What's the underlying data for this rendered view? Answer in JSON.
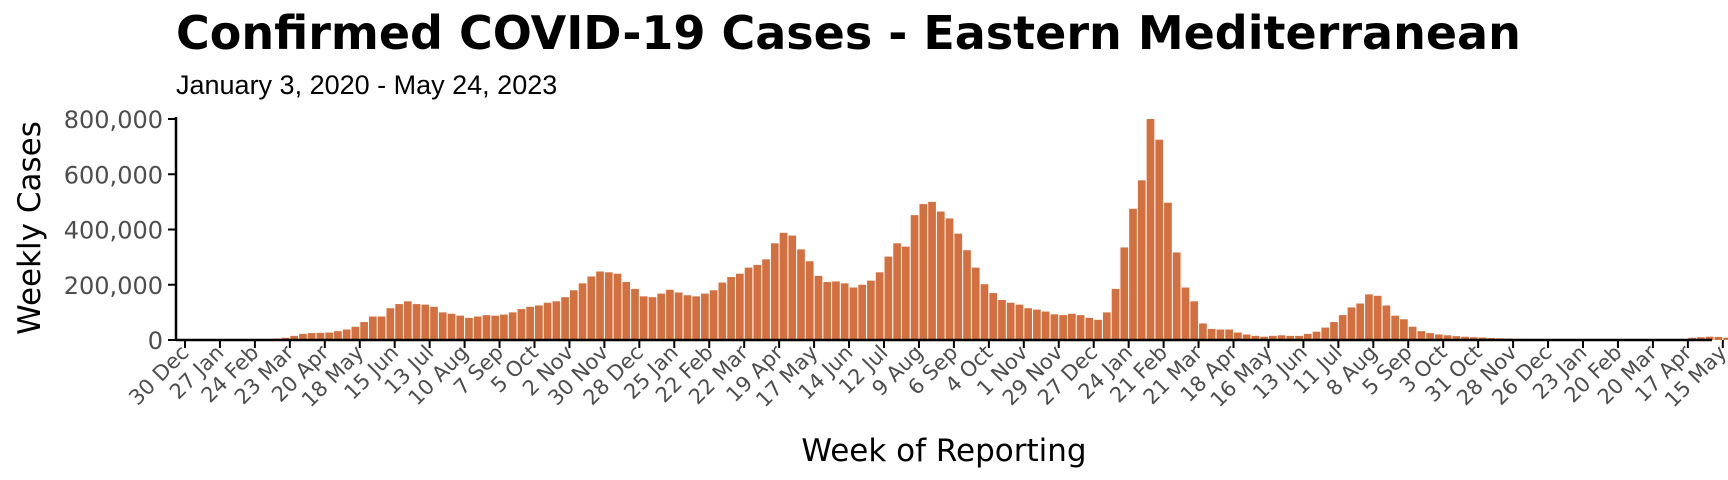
{
  "chart_data": {
    "type": "bar",
    "title": "Confirmed COVID-19 Cases - Eastern Mediterranean",
    "subtitle": "January 3, 2020 - May 24, 2023",
    "xlabel": "Week of Reporting",
    "ylabel": "Weekly Cases",
    "ylim": [
      0,
      800000
    ],
    "yticks": [
      0,
      200000,
      400000,
      600000,
      800000
    ],
    "ytick_labels": [
      "0",
      "200,000",
      "400,000",
      "600,000",
      "800,000"
    ],
    "xtick_labels": [
      "30 Dec",
      "27 Jan",
      "24 Feb",
      "23 Mar",
      "20 Apr",
      "18 May",
      "15 Jun",
      "13 Jul",
      "10 Aug",
      "7 Sep",
      "5 Oct",
      "2 Nov",
      "30 Nov",
      "28 Dec",
      "25 Jan",
      "22 Feb",
      "22 Mar",
      "19 Apr",
      "17 May",
      "14 Jun",
      "12 Jul",
      "9 Aug",
      "6 Sep",
      "4 Oct",
      "1 Nov",
      "29 Nov",
      "27 Dec",
      "24 Jan",
      "21 Feb",
      "21 Mar",
      "18 Apr",
      "16 May",
      "13 Jun",
      "11 Jul",
      "8 Aug",
      "5 Sep",
      "3 Oct",
      "31 Oct",
      "28 Nov",
      "26 Dec",
      "23 Jan",
      "20 Feb",
      "20 Mar",
      "17 Apr",
      "15 May"
    ],
    "grid": false,
    "legend": "none",
    "bar_color": "#d4703f",
    "values": [
      0,
      0,
      0,
      0,
      0,
      0,
      0,
      0,
      1000,
      3000,
      5000,
      8000,
      15000,
      22000,
      25000,
      26000,
      27000,
      32000,
      38000,
      48000,
      65000,
      85000,
      85000,
      115000,
      130000,
      140000,
      130000,
      128000,
      120000,
      100000,
      95000,
      88000,
      80000,
      85000,
      90000,
      88000,
      92000,
      100000,
      112000,
      120000,
      125000,
      135000,
      140000,
      155000,
      180000,
      205000,
      230000,
      248000,
      245000,
      240000,
      210000,
      185000,
      158000,
      155000,
      168000,
      182000,
      172000,
      162000,
      158000,
      168000,
      180000,
      208000,
      228000,
      240000,
      262000,
      272000,
      292000,
      350000,
      388000,
      378000,
      328000,
      285000,
      232000,
      210000,
      212000,
      205000,
      190000,
      200000,
      215000,
      245000,
      302000,
      350000,
      338000,
      452000,
      492000,
      500000,
      465000,
      440000,
      385000,
      325000,
      262000,
      202000,
      170000,
      145000,
      135000,
      128000,
      115000,
      110000,
      103000,
      93000,
      90000,
      95000,
      90000,
      80000,
      73000,
      100000,
      185000,
      335000,
      475000,
      578000,
      800000,
      725000,
      497000,
      317000,
      190000,
      140000,
      60000,
      40000,
      38000,
      38000,
      27000,
      20000,
      15000,
      12000,
      15000,
      17000,
      15000,
      15000,
      22000,
      30000,
      45000,
      65000,
      90000,
      118000,
      132000,
      165000,
      160000,
      125000,
      88000,
      75000,
      48000,
      32000,
      25000,
      20000,
      17000,
      14000,
      12000,
      10000,
      9000,
      7000,
      6000,
      5000,
      4000,
      3000,
      2000,
      2000,
      1500,
      1200,
      1000,
      1000,
      1000,
      1000,
      800,
      800,
      800,
      800,
      800,
      800,
      1000,
      1000,
      1500,
      3000,
      8000,
      10000,
      12000,
      11000,
      8000,
      6000,
      4000,
      3000,
      2000
    ]
  }
}
